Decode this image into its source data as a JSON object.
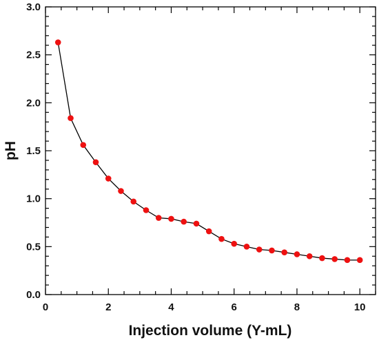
{
  "chart_data": {
    "type": "line",
    "title": "",
    "xlabel": "Injection volume (Y-mL)",
    "ylabel": "pH",
    "xlim": [
      0,
      10.5
    ],
    "ylim": [
      0,
      3.0
    ],
    "x_ticks": [
      "0",
      "2",
      "4",
      "6",
      "8",
      "10"
    ],
    "y_ticks": [
      "0.0",
      "0.5",
      "1.0",
      "1.5",
      "2.0",
      "2.5",
      "3.0"
    ],
    "grid": false,
    "legend": "none",
    "line_color": "#000000",
    "marker_color": "#ee1111",
    "series": [
      {
        "x": [
          0.4,
          0.8,
          1.2,
          1.6,
          2.0,
          2.4,
          2.8,
          3.2,
          3.6,
          4.0,
          4.4,
          4.8,
          5.2,
          5.6,
          6.0,
          6.4,
          6.8,
          7.2,
          7.6,
          8.0,
          8.4,
          8.8,
          9.2,
          9.6,
          10.0
        ],
        "y": [
          2.63,
          1.84,
          1.56,
          1.38,
          1.21,
          1.08,
          0.97,
          0.88,
          0.8,
          0.79,
          0.76,
          0.74,
          0.66,
          0.58,
          0.53,
          0.5,
          0.47,
          0.46,
          0.44,
          0.42,
          0.4,
          0.38,
          0.37,
          0.36,
          0.36
        ]
      }
    ]
  }
}
